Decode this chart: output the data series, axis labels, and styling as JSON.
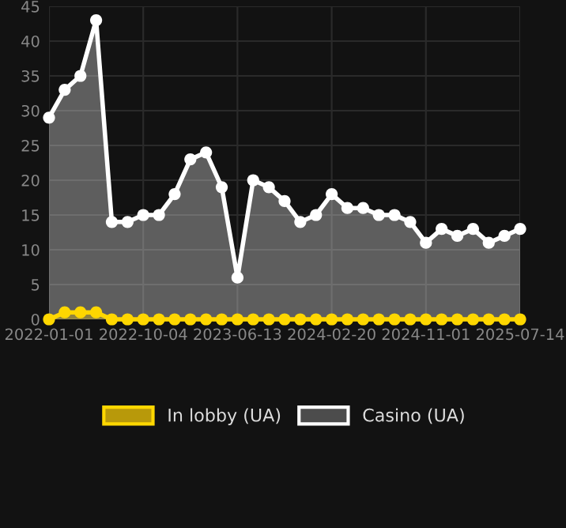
{
  "chart_data": {
    "type": "area",
    "categories": [
      "2022-01-01",
      null,
      null,
      null,
      null,
      null,
      "2022-10-04",
      null,
      null,
      null,
      null,
      null,
      "2023-06-13",
      null,
      null,
      null,
      null,
      null,
      "2024-02-20",
      null,
      null,
      null,
      null,
      null,
      "2024-11-01",
      null,
      null,
      null,
      null,
      null,
      "2025-07-14"
    ],
    "series": [
      {
        "name": "In lobby (UA)",
        "color": "#ffd700",
        "values": [
          0,
          1,
          1,
          1,
          0,
          0,
          0,
          0,
          0,
          0,
          0,
          0,
          0,
          0,
          0,
          0,
          0,
          0,
          0,
          0,
          0,
          0,
          0,
          0,
          0,
          0,
          0,
          0,
          0,
          0,
          0
        ]
      },
      {
        "name": "Casino (UA)",
        "color": "#ffffff",
        "values": [
          29,
          33,
          35,
          43,
          14,
          14,
          15,
          15,
          18,
          23,
          24,
          19,
          6,
          20,
          19,
          17,
          14,
          15,
          18,
          16,
          16,
          15,
          15,
          14,
          11,
          13,
          12,
          13,
          11,
          12,
          13
        ]
      }
    ],
    "ylim": [
      0,
      45
    ],
    "yticks": [
      0,
      5,
      10,
      15,
      20,
      25,
      30,
      35,
      40,
      45
    ],
    "grid": true,
    "legend": "bottom",
    "marker": "circle",
    "line_style": "solid"
  }
}
